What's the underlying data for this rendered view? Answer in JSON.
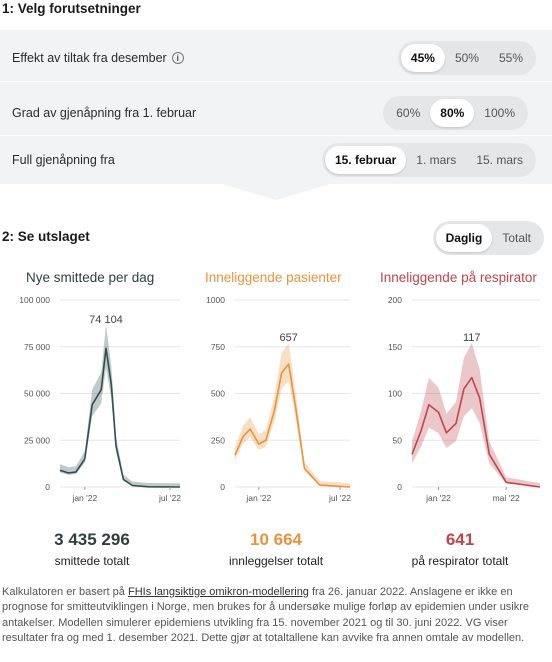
{
  "step1": {
    "title": "1: Velg forutsetninger"
  },
  "rows": [
    {
      "label": "Effekt av tiltak fra desember",
      "options": [
        "45%",
        "50%",
        "55%"
      ],
      "selected": 0,
      "info_icon": "info-icon"
    },
    {
      "label": "Grad av gjenåpning fra 1. februar",
      "options": [
        "60%",
        "80%",
        "100%"
      ],
      "selected": 1
    },
    {
      "label": "Full gjenåpning fra",
      "options": [
        "15. februar",
        "1. mars",
        "15. mars"
      ],
      "selected": 0
    }
  ],
  "step2": {
    "title": "2: Se utslaget",
    "toggle": [
      "Daglig",
      "Totalt"
    ],
    "selected": 0
  },
  "colors": {
    "cases": "#2f4f4f",
    "hosp": "#e8943a",
    "resp": "#c0454d"
  },
  "chart_data": [
    {
      "type": "area",
      "title": "Nye smittede per dag",
      "yticks": [
        "100 000",
        "75 000",
        "50 000",
        "25 000",
        "0"
      ],
      "xticks": [
        "jan '22",
        "jul '22"
      ],
      "ylim": [
        0,
        100000
      ],
      "peak_label": "74 104",
      "series": [
        {
          "x": [
            "2021-11-15",
            "2021-12-01",
            "2021-12-15",
            "2022-01-01",
            "2022-01-15",
            "2022-02-01",
            "2022-02-10",
            "2022-02-20",
            "2022-03-01",
            "2022-03-15",
            "2022-04-01",
            "2022-05-01",
            "2022-06-30"
          ],
          "values": [
            9000,
            7500,
            8000,
            15000,
            44000,
            52000,
            74104,
            55000,
            22000,
            4000,
            800,
            100,
            0
          ]
        }
      ]
    },
    {
      "type": "area",
      "title": "Inneliggende pasienter",
      "yticks": [
        "1000",
        "750",
        "500",
        "250",
        "0"
      ],
      "xticks": [
        "jan '22",
        "jul '22"
      ],
      "ylim": [
        0,
        1000
      ],
      "peak_label": "657",
      "series": [
        {
          "x": [
            "2021-11-15",
            "2021-12-01",
            "2021-12-15",
            "2022-01-01",
            "2022-01-15",
            "2022-02-01",
            "2022-02-15",
            "2022-03-01",
            "2022-03-15",
            "2022-04-01",
            "2022-05-01",
            "2022-06-30"
          ],
          "values": [
            170,
            270,
            310,
            230,
            250,
            410,
            610,
            657,
            420,
            100,
            10,
            0
          ]
        }
      ]
    },
    {
      "type": "area",
      "title": "Inneliggende på respirator",
      "yticks": [
        "200",
        "150",
        "100",
        "50",
        "0"
      ],
      "xticks": [
        "jan '22",
        "mai '22"
      ],
      "ylim": [
        0,
        200
      ],
      "peak_label": "117",
      "series": [
        {
          "x": [
            "2021-11-15",
            "2021-12-01",
            "2021-12-15",
            "2022-01-01",
            "2022-01-15",
            "2022-02-01",
            "2022-02-15",
            "2022-03-01",
            "2022-03-15",
            "2022-04-01",
            "2022-05-01",
            "2022-06-30"
          ],
          "values": [
            35,
            60,
            88,
            80,
            58,
            68,
            105,
            117,
            95,
            35,
            5,
            0
          ]
        }
      ]
    }
  ],
  "totals": [
    {
      "value": "3 435 296",
      "label": "smittede totalt"
    },
    {
      "value": "10 664",
      "label": "innleggelser totalt"
    },
    {
      "value": "641",
      "label": "på respirator totalt"
    }
  ],
  "footer": {
    "pre": "Kalkulatoren er basert på ",
    "link": "FHIs langsiktige omikron-modellering",
    "post": " fra 26. januar 2022. Anslagene er ikke en prognose for smitteutviklingen i Norge, men brukes for å undersøke mulige forløp av epidemien under usikre antakelser. Modellen simulerer epidemiens utvikling fra 15. november 2021 og til 30. juni 2022. VG viser resultater fra og med 1. desember 2021. Dette gjør at totaltallene kan avvike fra annen omtale av modellen."
  }
}
